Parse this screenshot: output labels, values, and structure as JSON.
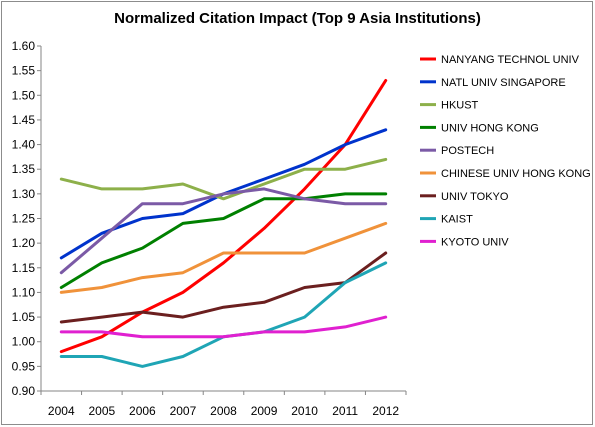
{
  "chart_data": {
    "type": "line",
    "title": "Normalized Citation Impact (Top 9 Asia Institutions)",
    "xlabel": "",
    "ylabel": "",
    "categories": [
      "2004",
      "2005",
      "2006",
      "2007",
      "2008",
      "2009",
      "2010",
      "2011",
      "2012"
    ],
    "ylim": [
      0.9,
      1.6
    ],
    "yticks": [
      "0.90",
      "0.95",
      "1.00",
      "1.05",
      "1.10",
      "1.15",
      "1.20",
      "1.25",
      "1.30",
      "1.35",
      "1.40",
      "1.45",
      "1.50",
      "1.55",
      "1.60"
    ],
    "grid": false,
    "legend": "right",
    "series": [
      {
        "name": "NANYANG TECHNOL UNIV",
        "color": "#ff0000",
        "values": [
          0.98,
          1.01,
          1.06,
          1.1,
          1.16,
          1.23,
          1.31,
          1.4,
          1.53
        ]
      },
      {
        "name": "NATL UNIV SINGAPORE",
        "color": "#0033cc",
        "values": [
          1.17,
          1.22,
          1.25,
          1.26,
          1.3,
          1.33,
          1.36,
          1.4,
          1.43
        ]
      },
      {
        "name": "HKUST",
        "color": "#8db04a",
        "values": [
          1.33,
          1.31,
          1.31,
          1.32,
          1.29,
          1.32,
          1.35,
          1.35,
          1.37
        ]
      },
      {
        "name": "UNIV HONG KONG",
        "color": "#008000",
        "values": [
          1.11,
          1.16,
          1.19,
          1.24,
          1.25,
          1.29,
          1.29,
          1.3,
          1.3
        ]
      },
      {
        "name": "POSTECH",
        "color": "#7b5aa6",
        "values": [
          1.14,
          1.21,
          1.28,
          1.28,
          1.3,
          1.31,
          1.29,
          1.28,
          1.28
        ]
      },
      {
        "name": "CHINESE UNIV HONG KONG",
        "color": "#f0923a",
        "values": [
          1.1,
          1.11,
          1.13,
          1.14,
          1.18,
          1.18,
          1.18,
          1.21,
          1.24
        ]
      },
      {
        "name": "UNIV TOKYO",
        "color": "#6b1f1f",
        "values": [
          1.04,
          1.05,
          1.06,
          1.05,
          1.07,
          1.08,
          1.11,
          1.12,
          1.18
        ]
      },
      {
        "name": "KAIST",
        "color": "#1fa5b5",
        "values": [
          0.97,
          0.97,
          0.95,
          0.97,
          1.01,
          1.02,
          1.05,
          1.12,
          1.16
        ]
      },
      {
        "name": "KYOTO UNIV",
        "color": "#e020d0",
        "values": [
          1.02,
          1.02,
          1.01,
          1.01,
          1.01,
          1.02,
          1.02,
          1.03,
          1.05
        ]
      }
    ]
  }
}
